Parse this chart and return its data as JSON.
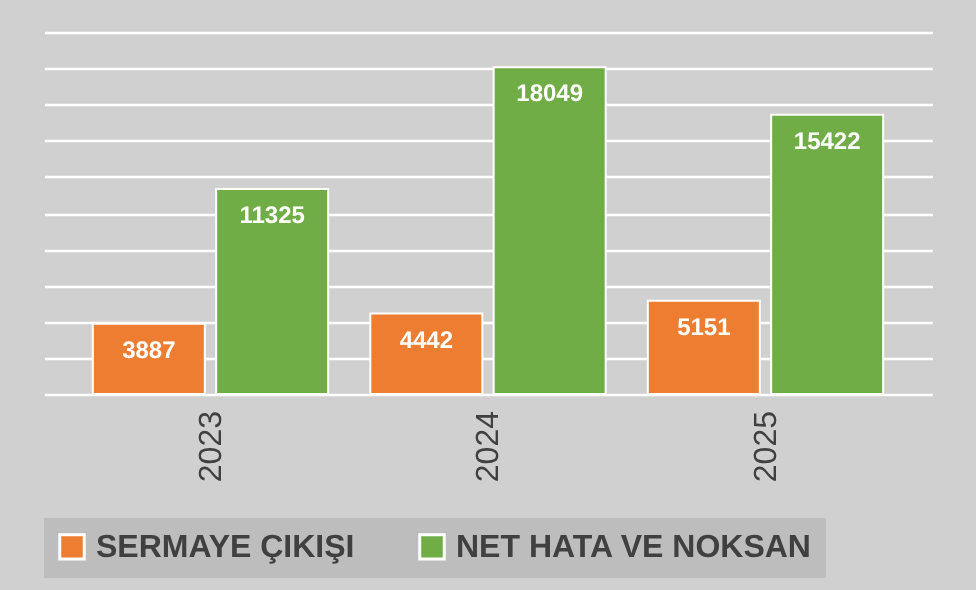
{
  "chart_data": {
    "type": "bar",
    "categories": [
      "2023",
      "2024",
      "2025"
    ],
    "series": [
      {
        "name": "SERMAYE ÇIKIŞI",
        "color": "#ed7d31",
        "values": [
          3887,
          4442,
          5151
        ]
      },
      {
        "name": "NET HATA VE NOKSAN",
        "color": "#70ad47",
        "values": [
          11325,
          18049,
          15422
        ]
      }
    ],
    "data_labels": true,
    "grid": "y",
    "legend": "bottom"
  }
}
